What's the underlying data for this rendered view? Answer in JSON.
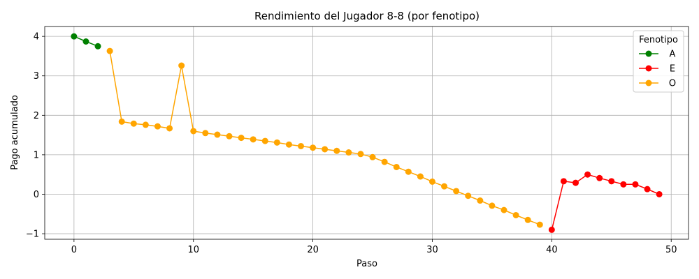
{
  "chart_data": {
    "type": "line",
    "title": "Rendimiento del Jugador 8-8 (por fenotipo)",
    "xlabel": "Paso",
    "ylabel": "Pago acumulado",
    "xlim": [
      -2.45,
      51.45
    ],
    "ylim": [
      -1.14,
      4.25
    ],
    "xticks": [
      0,
      10,
      20,
      30,
      40,
      50
    ],
    "yticks": [
      -1,
      0,
      1,
      2,
      3,
      4
    ],
    "xtick_labels": [
      "0",
      "10",
      "20",
      "30",
      "40",
      "50"
    ],
    "ytick_labels": [
      "−1",
      "0",
      "1",
      "2",
      "3",
      "4"
    ],
    "grid": true,
    "legend": {
      "title": "Fenotipo",
      "placement": "top-right"
    },
    "series": [
      {
        "name": "A",
        "color": "#008000",
        "x": [
          0,
          1,
          2
        ],
        "y": [
          4.0,
          3.87,
          3.75
        ]
      },
      {
        "name": "E",
        "color": "#ff0000",
        "x": [
          40,
          41,
          42,
          43,
          44,
          45,
          46,
          47,
          48,
          49
        ],
        "y": [
          -0.9,
          0.33,
          0.29,
          0.5,
          0.41,
          0.33,
          0.25,
          0.25,
          0.13,
          0.0
        ]
      },
      {
        "name": "O",
        "color": "#ffa500",
        "x": [
          3,
          4,
          5,
          6,
          7,
          8,
          9,
          10,
          11,
          12,
          13,
          14,
          15,
          16,
          17,
          18,
          19,
          20,
          21,
          22,
          23,
          24,
          25,
          26,
          27,
          28,
          29,
          30,
          31,
          32,
          33,
          34,
          35,
          36,
          37,
          38,
          39
        ],
        "y": [
          3.63,
          1.84,
          1.79,
          1.76,
          1.72,
          1.67,
          3.26,
          1.6,
          1.55,
          1.51,
          1.47,
          1.43,
          1.39,
          1.35,
          1.31,
          1.26,
          1.22,
          1.18,
          1.14,
          1.1,
          1.06,
          1.02,
          0.94,
          0.82,
          0.69,
          0.57,
          0.45,
          0.32,
          0.2,
          0.08,
          -0.04,
          -0.16,
          -0.29,
          -0.4,
          -0.53,
          -0.65,
          -0.77
        ]
      }
    ]
  }
}
